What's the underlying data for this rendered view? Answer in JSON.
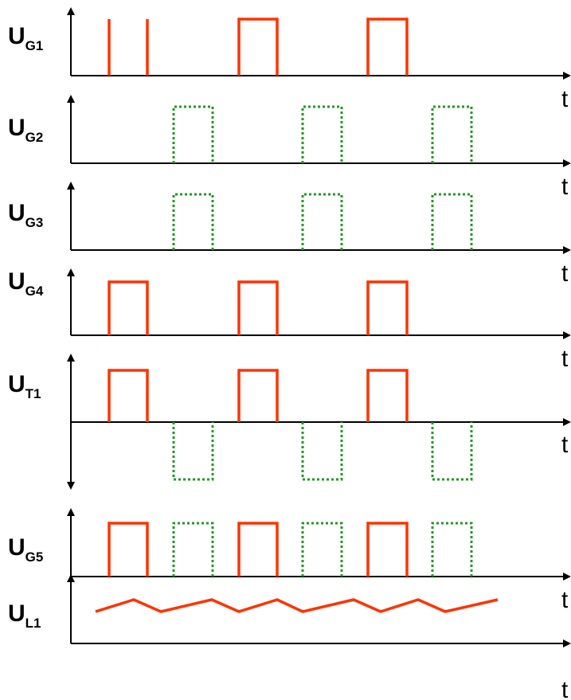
{
  "colors": {
    "axis": "#000000",
    "solid_pulse": "#ff3300",
    "dotted_pulse": "#229922"
  },
  "time_label": "t",
  "signals": [
    {
      "main": "U",
      "sub": "G1"
    },
    {
      "main": "U",
      "sub": "G2"
    },
    {
      "main": "U",
      "sub": "G3"
    },
    {
      "main": "U",
      "sub": "G4"
    },
    {
      "main": "U",
      "sub": "T1"
    },
    {
      "main": "U",
      "sub": "G5"
    },
    {
      "main": "U",
      "sub": "L1"
    }
  ]
}
